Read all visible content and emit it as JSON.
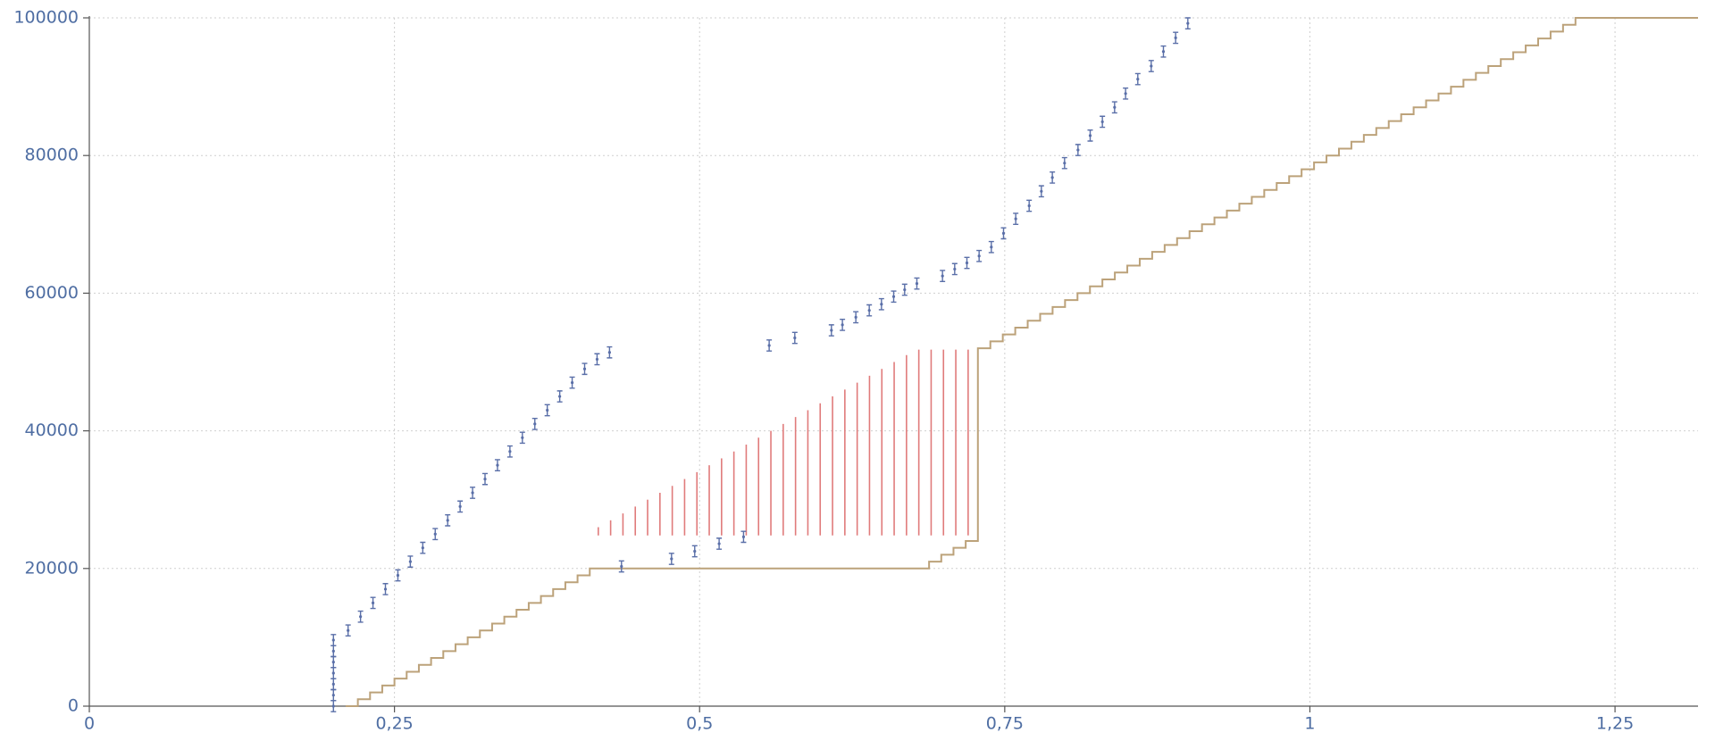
{
  "chart_data": {
    "type": "composite",
    "xlim": [
      0,
      1.318
    ],
    "ylim": [
      0,
      100000
    ],
    "xticks": [
      0,
      {
        "value": 0.25,
        "label": "0,25"
      },
      {
        "value": 0.5,
        "label": "0,5"
      },
      {
        "value": 0.75,
        "label": "0,75"
      },
      1,
      {
        "value": 1.25,
        "label": "1,25"
      }
    ],
    "yticks": [
      0,
      20000,
      40000,
      60000,
      80000,
      100000
    ],
    "grid": true,
    "series": [
      {
        "type": "step",
        "color": "#bca27a",
        "x": [
          0.21,
          0.22,
          0.23,
          0.24,
          0.25,
          0.26,
          0.27,
          0.28,
          0.29,
          0.3,
          0.31,
          0.32,
          0.33,
          0.34,
          0.35,
          0.36,
          0.37,
          0.38,
          0.39,
          0.4,
          0.41,
          0.688,
          0.698,
          0.708,
          0.718,
          0.728,
          0.7382,
          0.7484,
          0.7586,
          0.7688,
          0.779,
          0.7892,
          0.7994,
          0.8096,
          0.8198,
          0.83,
          0.8402,
          0.8504,
          0.8606,
          0.8708,
          0.881,
          0.8912,
          0.9014,
          0.9116,
          0.9218,
          0.932,
          0.9422,
          0.9524,
          0.9626,
          0.9728,
          0.983,
          0.9932,
          1.0034,
          1.0136,
          1.0238,
          1.034,
          1.0442,
          1.0544,
          1.0646,
          1.0748,
          1.085,
          1.0952,
          1.1054,
          1.1156,
          1.1258,
          1.136,
          1.1462,
          1.1564,
          1.1666,
          1.1768,
          1.187,
          1.1972,
          1.2074,
          1.2176,
          1.318
        ],
        "values": [
          0,
          1000,
          2000,
          3000,
          4000,
          5000,
          6000,
          7000,
          8000,
          9000,
          10000,
          11000,
          12000,
          13000,
          14000,
          15000,
          16000,
          17000,
          18000,
          19000,
          20000,
          21000,
          22000,
          23000,
          24000,
          52000,
          53000,
          54000,
          55000,
          56000,
          57000,
          58000,
          59000,
          60000,
          61000,
          62000,
          63000,
          64000,
          65000,
          66000,
          67000,
          68000,
          69000,
          70000,
          71000,
          72000,
          73000,
          74000,
          75000,
          76000,
          77000,
          78000,
          79000,
          80000,
          81000,
          82000,
          83000,
          84000,
          85000,
          86000,
          87000,
          88000,
          89000,
          90000,
          91000,
          92000,
          93000,
          94000,
          95000,
          96000,
          97000,
          98000,
          99000,
          100000,
          100000
        ]
      },
      {
        "type": "range",
        "color": "#e07b7b",
        "low": 24800,
        "x": [
          0.417,
          0.4271,
          0.4372,
          0.4473,
          0.4574,
          0.4675,
          0.4776,
          0.4877,
          0.4978,
          0.5079,
          0.518,
          0.5281,
          0.5382,
          0.5483,
          0.5584,
          0.5685,
          0.5786,
          0.5887,
          0.5988,
          0.6089,
          0.619,
          0.6291,
          0.6392,
          0.6493,
          0.6594,
          0.6695,
          0.6796,
          0.6897,
          0.6998,
          0.7099,
          0.72
        ],
        "values": [
          26000,
          27000,
          28000,
          29000,
          30000,
          31000,
          32000,
          33000,
          34000,
          35000,
          36000,
          37000,
          38000,
          39000,
          40000,
          41000,
          42000,
          43000,
          44000,
          45000,
          46000,
          47000,
          48000,
          49000,
          50000,
          51000,
          51800,
          51800,
          51800,
          51800,
          51800
        ]
      },
      {
        "type": "errorbar",
        "color": "#5a6fa8",
        "error": 800,
        "x": [
          0.2,
          0.2,
          0.2,
          0.2,
          0.2,
          0.2,
          0.2,
          0.212,
          0.2222,
          0.2324,
          0.2426,
          0.2528,
          0.263,
          0.2732,
          0.2834,
          0.2936,
          0.3038,
          0.314,
          0.3242,
          0.3344,
          0.3446,
          0.3548,
          0.365,
          0.3752,
          0.3854,
          0.3956,
          0.4058,
          0.416,
          0.4262,
          0.436,
          0.477,
          0.496,
          0.516,
          0.536,
          0.557,
          0.578,
          0.608,
          0.617,
          0.628,
          0.639,
          0.649,
          0.659,
          0.668,
          0.678,
          0.699,
          0.709,
          0.719,
          0.729,
          0.739,
          0.749,
          0.759,
          0.77,
          0.78,
          0.789,
          0.799,
          0.81,
          0.82,
          0.83,
          0.84,
          0.849,
          0.859,
          0.87,
          0.88,
          0.89,
          0.9
        ],
        "values": [
          0,
          1600,
          3200,
          4800,
          6400,
          8000,
          9600,
          11000,
          13000,
          15000,
          17000,
          19000,
          21000,
          23000,
          25000,
          27000,
          29000,
          31000,
          33000,
          35000,
          37000,
          39000,
          41000,
          43000,
          45000,
          47000,
          49000,
          50400,
          51400,
          20300,
          21400,
          22500,
          23600,
          24600,
          52400,
          53500,
          54600,
          55400,
          56500,
          57500,
          58400,
          59500,
          60500,
          61400,
          62500,
          63500,
          64400,
          65400,
          66700,
          68700,
          70800,
          72700,
          74800,
          76800,
          78900,
          80800,
          82900,
          84900,
          87000,
          89000,
          91100,
          93000,
          95100,
          97100,
          99200
        ]
      }
    ]
  }
}
